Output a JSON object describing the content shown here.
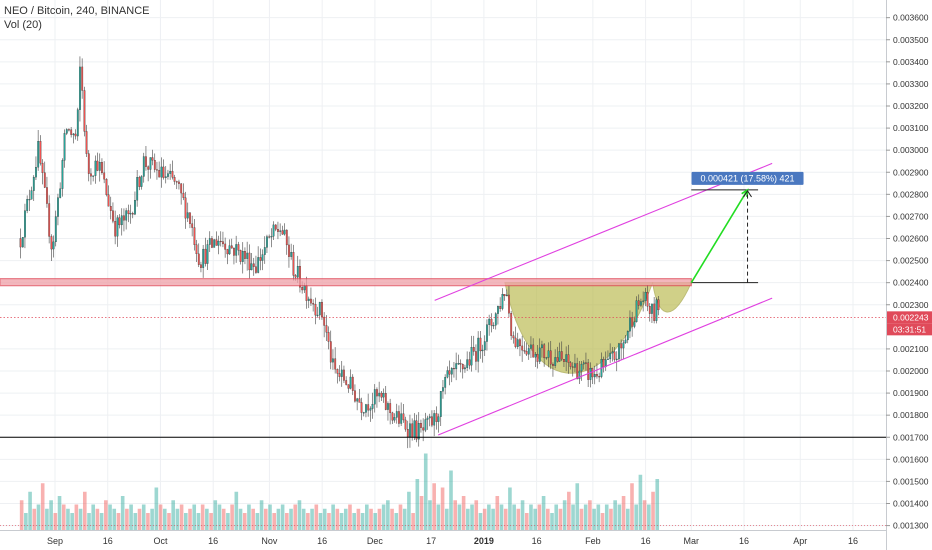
{
  "legend": {
    "title": "NEO / Bitcoin, 240, BINANCE",
    "vol": "Vol (20)"
  },
  "chart_data": {
    "type": "candlestick",
    "symbol": "NEO / Bitcoin",
    "interval": "240",
    "exchange": "BINANCE",
    "ylim": [
      0.00128,
      0.00368
    ],
    "yticks": [
      "0.003600",
      "0.003500",
      "0.003400",
      "0.003300",
      "0.003200",
      "0.003100",
      "0.003000",
      "0.002900",
      "0.002800",
      "0.002700",
      "0.002600",
      "0.002500",
      "0.002400",
      "0.002300",
      "0.002100",
      "0.002000",
      "0.001900",
      "0.001800",
      "0.001700",
      "0.001600",
      "0.001500",
      "0.001400",
      "0.001300"
    ],
    "xticks": [
      "Sep",
      "16",
      "Oct",
      "16",
      "Nov",
      "16",
      "Dec",
      "17",
      "2019",
      "16",
      "Feb",
      "16",
      "Mar",
      "16",
      "Apr",
      "16"
    ],
    "price_path": [
      {
        "date": "2018-08-22",
        "close": 0.0026
      },
      {
        "date": "2018-08-27",
        "close": 0.003
      },
      {
        "date": "2018-08-31",
        "close": 0.00255
      },
      {
        "date": "2018-09-04",
        "close": 0.0031
      },
      {
        "date": "2018-09-07",
        "close": 0.00305
      },
      {
        "date": "2018-09-08",
        "close": 0.0034
      },
      {
        "date": "2018-09-10",
        "close": 0.0029
      },
      {
        "date": "2018-09-13",
        "close": 0.00295
      },
      {
        "date": "2018-09-18",
        "close": 0.00265
      },
      {
        "date": "2018-09-22",
        "close": 0.0027
      },
      {
        "date": "2018-09-26",
        "close": 0.00295
      },
      {
        "date": "2018-09-30",
        "close": 0.0029
      },
      {
        "date": "2018-10-05",
        "close": 0.00285
      },
      {
        "date": "2018-10-09",
        "close": 0.0027
      },
      {
        "date": "2018-10-12",
        "close": 0.0025
      },
      {
        "date": "2018-10-17",
        "close": 0.0026
      },
      {
        "date": "2018-10-22",
        "close": 0.00255
      },
      {
        "date": "2018-10-28",
        "close": 0.00248
      },
      {
        "date": "2018-11-01",
        "close": 0.0026
      },
      {
        "date": "2018-11-04",
        "close": 0.00265
      },
      {
        "date": "2018-11-08",
        "close": 0.00245
      },
      {
        "date": "2018-11-13",
        "close": 0.00232
      },
      {
        "date": "2018-11-16",
        "close": 0.00225
      },
      {
        "date": "2018-11-19",
        "close": 0.002
      },
      {
        "date": "2018-11-23",
        "close": 0.00195
      },
      {
        "date": "2018-11-27",
        "close": 0.00185
      },
      {
        "date": "2018-12-02",
        "close": 0.00188
      },
      {
        "date": "2018-12-06",
        "close": 0.0018
      },
      {
        "date": "2018-12-10",
        "close": 0.00175
      },
      {
        "date": "2018-12-14",
        "close": 0.00172
      },
      {
        "date": "2018-12-18",
        "close": 0.00178
      },
      {
        "date": "2018-12-21",
        "close": 0.00195
      },
      {
        "date": "2018-12-26",
        "close": 0.00202
      },
      {
        "date": "2018-12-30",
        "close": 0.0021
      },
      {
        "date": "2019-01-04",
        "close": 0.00225
      },
      {
        "date": "2019-01-07",
        "close": 0.00238
      },
      {
        "date": "2019-01-09",
        "close": 0.00215
      },
      {
        "date": "2019-01-14",
        "close": 0.0021
      },
      {
        "date": "2019-01-20",
        "close": 0.00207
      },
      {
        "date": "2019-01-26",
        "close": 0.00202
      },
      {
        "date": "2019-02-01",
        "close": 0.00198
      },
      {
        "date": "2019-02-05",
        "close": 0.00203
      },
      {
        "date": "2019-02-09",
        "close": 0.0021
      },
      {
        "date": "2019-02-12",
        "close": 0.00225
      },
      {
        "date": "2019-02-15",
        "close": 0.00233
      },
      {
        "date": "2019-02-18",
        "close": 0.00225
      },
      {
        "date": "2019-02-20",
        "close": 0.00232
      }
    ],
    "volume_bars": [
      0.35,
      0.2,
      0.45,
      0.25,
      0.3,
      0.55,
      0.25,
      0.35,
      0.2,
      0.4,
      0.3,
      0.25,
      0.2,
      0.3,
      0.25,
      0.45,
      0.2,
      0.3,
      0.25,
      0.2,
      0.35,
      0.3,
      0.25,
      0.2,
      0.4,
      0.25,
      0.3,
      0.2,
      0.25,
      0.3,
      0.2,
      0.25,
      0.5,
      0.3,
      0.25,
      0.2,
      0.35,
      0.25,
      0.3,
      0.2,
      0.25,
      0.3,
      0.2,
      0.3,
      0.25,
      0.2,
      0.35,
      0.3,
      0.25,
      0.2,
      0.3,
      0.45,
      0.25,
      0.2,
      0.3,
      0.25,
      0.2,
      0.35,
      0.25,
      0.3,
      0.2,
      0.25,
      0.3,
      0.2,
      0.25,
      0.3,
      0.35,
      0.25,
      0.2,
      0.25,
      0.3,
      0.2,
      0.25,
      0.2,
      0.3,
      0.25,
      0.2,
      0.25,
      0.3,
      0.2,
      0.25,
      0.2,
      0.3,
      0.25,
      0.2,
      0.25,
      0.3,
      0.35,
      0.25,
      0.2,
      0.3,
      0.25,
      0.45,
      0.2,
      0.6,
      0.4,
      0.9,
      0.35,
      0.55,
      0.3,
      0.5,
      0.25,
      0.7,
      0.35,
      0.3,
      0.4,
      0.25,
      0.3,
      0.35,
      0.2,
      0.25,
      0.3,
      0.25,
      0.4,
      0.3,
      0.25,
      0.5,
      0.3,
      0.25,
      0.35,
      0.2,
      0.3,
      0.25,
      0.3,
      0.4,
      0.25,
      0.2,
      0.3,
      0.25,
      0.35,
      0.45,
      0.3,
      0.55,
      0.25,
      0.3,
      0.35,
      0.25,
      0.3,
      0.2,
      0.3,
      0.25,
      0.35,
      0.3,
      0.4,
      0.25,
      0.55,
      0.3,
      0.65,
      0.35,
      0.3,
      0.45,
      0.6
    ],
    "current_price": "0.002243",
    "countdown": "03:31:51",
    "measure_label": "0.000421 (17.58%) 421",
    "horizontal_levels": [
      {
        "price": 0.0024,
        "style": "resistance-band",
        "color": "#e04a5a"
      },
      {
        "price": 0.0017,
        "style": "support-line",
        "color": "#000000"
      },
      {
        "price": 0.002243,
        "style": "current-price-dotted",
        "color": "#e04a5a"
      }
    ],
    "channel": {
      "upper": [
        {
          "date": "2018-12-18",
          "price": 0.00232
        },
        {
          "date": "2019-03-24",
          "price": 0.00294
        }
      ],
      "lower": [
        {
          "date": "2018-12-19",
          "price": 0.00171
        },
        {
          "date": "2019-03-24",
          "price": 0.00233
        }
      ]
    },
    "projection": {
      "from": {
        "date": "2019-03-01",
        "price": 0.0024
      },
      "to": {
        "date": "2019-03-17",
        "price": 0.00282
      }
    },
    "target_level": {
      "price": 0.00282,
      "from": "2019-03-01",
      "to": "2019-03-20"
    },
    "cup_pattern": {
      "left": {
        "date": "2019-01-07",
        "price": 0.0024
      },
      "right": {
        "date": "2019-02-18",
        "price": 0.0024
      },
      "bottom_price": 0.00198,
      "handle_end": {
        "date": "2019-03-01",
        "price": 0.0024
      },
      "fill": "#b8b84a"
    },
    "colors": {
      "up": "#26a69a",
      "down": "#ef5350",
      "wick": "#333333",
      "channel": "#e040e0",
      "arrow": "#22dd22",
      "grid": "#eef0f3",
      "measure_bg": "#4a78c0"
    },
    "legend_position": "top-left"
  }
}
